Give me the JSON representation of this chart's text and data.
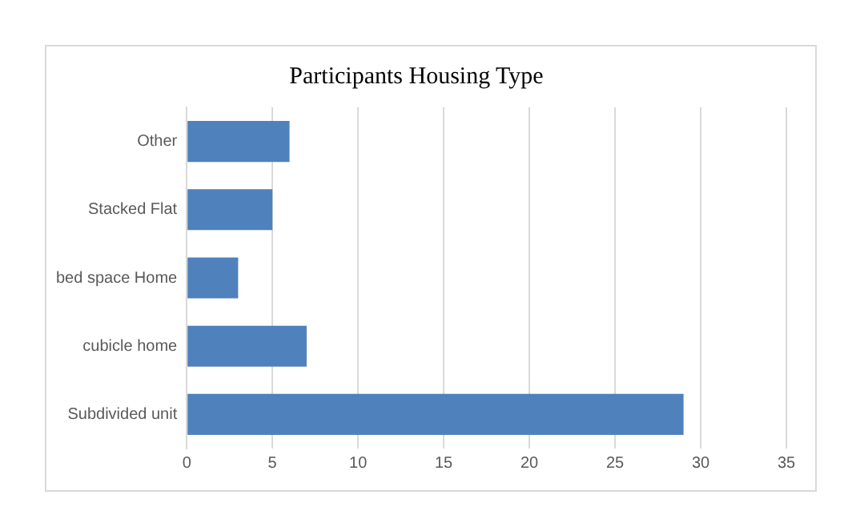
{
  "chart_data": {
    "type": "bar",
    "title": "Participants Housing Type",
    "orientation": "horizontal",
    "categories": [
      "Other",
      "Stacked Flat",
      "bed space Home",
      "cubicle home",
      "Subdivided unit"
    ],
    "values": [
      6,
      5,
      3,
      7,
      29
    ],
    "color": "#4f81bd",
    "xlim": [
      0,
      35
    ],
    "xticks": [
      0,
      5,
      10,
      15,
      20,
      25,
      30,
      35
    ],
    "grid": "x",
    "legend": false
  }
}
